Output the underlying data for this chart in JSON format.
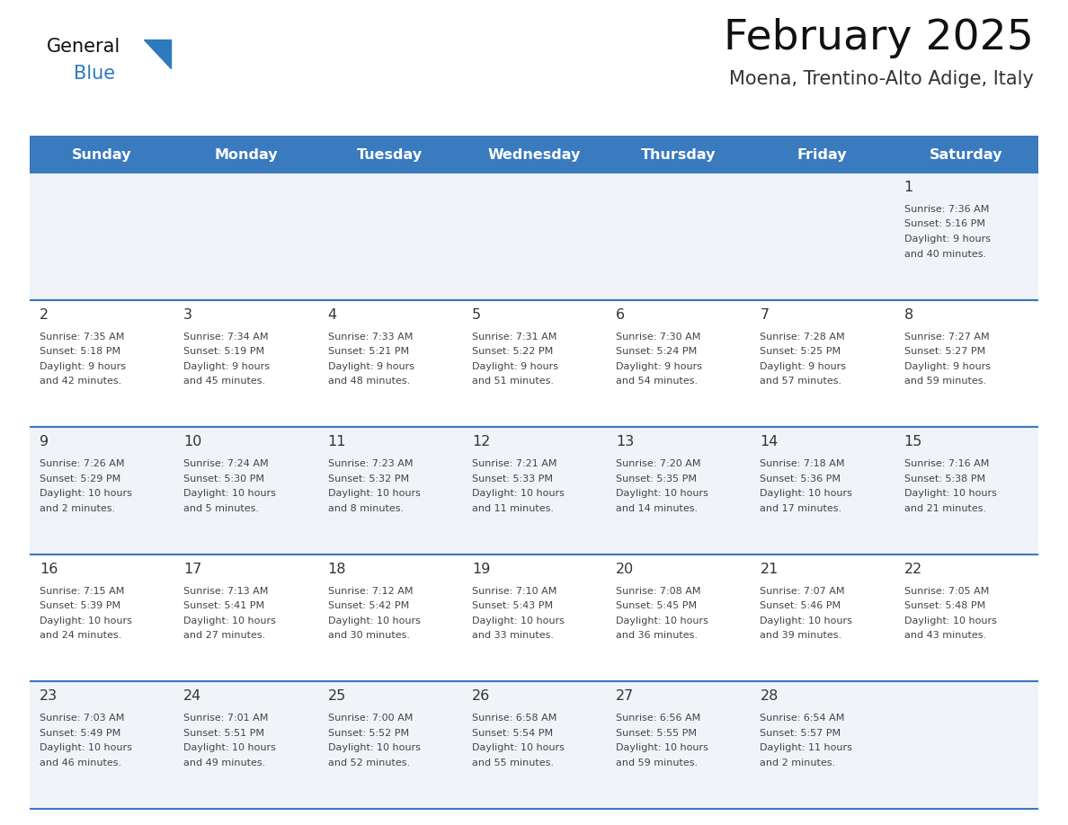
{
  "title": "February 2025",
  "subtitle": "Moena, Trentino-Alto Adige, Italy",
  "days_of_week": [
    "Sunday",
    "Monday",
    "Tuesday",
    "Wednesday",
    "Thursday",
    "Friday",
    "Saturday"
  ],
  "header_bg": "#3a7abf",
  "header_text": "#ffffff",
  "cell_bg_light": "#f0f4f8",
  "cell_bg_white": "#ffffff",
  "separator_color": "#3a7abf",
  "day_num_color": "#333333",
  "text_color": "#444444",
  "logo_general_color": "#111111",
  "logo_blue_color": "#2e7abf",
  "title_color": "#111111",
  "subtitle_color": "#333333",
  "calendar_data": [
    {
      "day": 1,
      "col": 6,
      "row": 0,
      "sunrise": "7:36 AM",
      "sunset": "5:16 PM",
      "daylight_h": "9 hours",
      "daylight_m": "40 minutes"
    },
    {
      "day": 2,
      "col": 0,
      "row": 1,
      "sunrise": "7:35 AM",
      "sunset": "5:18 PM",
      "daylight_h": "9 hours",
      "daylight_m": "42 minutes"
    },
    {
      "day": 3,
      "col": 1,
      "row": 1,
      "sunrise": "7:34 AM",
      "sunset": "5:19 PM",
      "daylight_h": "9 hours",
      "daylight_m": "45 minutes"
    },
    {
      "day": 4,
      "col": 2,
      "row": 1,
      "sunrise": "7:33 AM",
      "sunset": "5:21 PM",
      "daylight_h": "9 hours",
      "daylight_m": "48 minutes"
    },
    {
      "day": 5,
      "col": 3,
      "row": 1,
      "sunrise": "7:31 AM",
      "sunset": "5:22 PM",
      "daylight_h": "9 hours",
      "daylight_m": "51 minutes"
    },
    {
      "day": 6,
      "col": 4,
      "row": 1,
      "sunrise": "7:30 AM",
      "sunset": "5:24 PM",
      "daylight_h": "9 hours",
      "daylight_m": "54 minutes"
    },
    {
      "day": 7,
      "col": 5,
      "row": 1,
      "sunrise": "7:28 AM",
      "sunset": "5:25 PM",
      "daylight_h": "9 hours",
      "daylight_m": "57 minutes"
    },
    {
      "day": 8,
      "col": 6,
      "row": 1,
      "sunrise": "7:27 AM",
      "sunset": "5:27 PM",
      "daylight_h": "9 hours",
      "daylight_m": "59 minutes"
    },
    {
      "day": 9,
      "col": 0,
      "row": 2,
      "sunrise": "7:26 AM",
      "sunset": "5:29 PM",
      "daylight_h": "10 hours",
      "daylight_m": "2 minutes"
    },
    {
      "day": 10,
      "col": 1,
      "row": 2,
      "sunrise": "7:24 AM",
      "sunset": "5:30 PM",
      "daylight_h": "10 hours",
      "daylight_m": "5 minutes"
    },
    {
      "day": 11,
      "col": 2,
      "row": 2,
      "sunrise": "7:23 AM",
      "sunset": "5:32 PM",
      "daylight_h": "10 hours",
      "daylight_m": "8 minutes"
    },
    {
      "day": 12,
      "col": 3,
      "row": 2,
      "sunrise": "7:21 AM",
      "sunset": "5:33 PM",
      "daylight_h": "10 hours",
      "daylight_m": "11 minutes"
    },
    {
      "day": 13,
      "col": 4,
      "row": 2,
      "sunrise": "7:20 AM",
      "sunset": "5:35 PM",
      "daylight_h": "10 hours",
      "daylight_m": "14 minutes"
    },
    {
      "day": 14,
      "col": 5,
      "row": 2,
      "sunrise": "7:18 AM",
      "sunset": "5:36 PM",
      "daylight_h": "10 hours",
      "daylight_m": "17 minutes"
    },
    {
      "day": 15,
      "col": 6,
      "row": 2,
      "sunrise": "7:16 AM",
      "sunset": "5:38 PM",
      "daylight_h": "10 hours",
      "daylight_m": "21 minutes"
    },
    {
      "day": 16,
      "col": 0,
      "row": 3,
      "sunrise": "7:15 AM",
      "sunset": "5:39 PM",
      "daylight_h": "10 hours",
      "daylight_m": "24 minutes"
    },
    {
      "day": 17,
      "col": 1,
      "row": 3,
      "sunrise": "7:13 AM",
      "sunset": "5:41 PM",
      "daylight_h": "10 hours",
      "daylight_m": "27 minutes"
    },
    {
      "day": 18,
      "col": 2,
      "row": 3,
      "sunrise": "7:12 AM",
      "sunset": "5:42 PM",
      "daylight_h": "10 hours",
      "daylight_m": "30 minutes"
    },
    {
      "day": 19,
      "col": 3,
      "row": 3,
      "sunrise": "7:10 AM",
      "sunset": "5:43 PM",
      "daylight_h": "10 hours",
      "daylight_m": "33 minutes"
    },
    {
      "day": 20,
      "col": 4,
      "row": 3,
      "sunrise": "7:08 AM",
      "sunset": "5:45 PM",
      "daylight_h": "10 hours",
      "daylight_m": "36 minutes"
    },
    {
      "day": 21,
      "col": 5,
      "row": 3,
      "sunrise": "7:07 AM",
      "sunset": "5:46 PM",
      "daylight_h": "10 hours",
      "daylight_m": "39 minutes"
    },
    {
      "day": 22,
      "col": 6,
      "row": 3,
      "sunrise": "7:05 AM",
      "sunset": "5:48 PM",
      "daylight_h": "10 hours",
      "daylight_m": "43 minutes"
    },
    {
      "day": 23,
      "col": 0,
      "row": 4,
      "sunrise": "7:03 AM",
      "sunset": "5:49 PM",
      "daylight_h": "10 hours",
      "daylight_m": "46 minutes"
    },
    {
      "day": 24,
      "col": 1,
      "row": 4,
      "sunrise": "7:01 AM",
      "sunset": "5:51 PM",
      "daylight_h": "10 hours",
      "daylight_m": "49 minutes"
    },
    {
      "day": 25,
      "col": 2,
      "row": 4,
      "sunrise": "7:00 AM",
      "sunset": "5:52 PM",
      "daylight_h": "10 hours",
      "daylight_m": "52 minutes"
    },
    {
      "day": 26,
      "col": 3,
      "row": 4,
      "sunrise": "6:58 AM",
      "sunset": "5:54 PM",
      "daylight_h": "10 hours",
      "daylight_m": "55 minutes"
    },
    {
      "day": 27,
      "col": 4,
      "row": 4,
      "sunrise": "6:56 AM",
      "sunset": "5:55 PM",
      "daylight_h": "10 hours",
      "daylight_m": "59 minutes"
    },
    {
      "day": 28,
      "col": 5,
      "row": 4,
      "sunrise": "6:54 AM",
      "sunset": "5:57 PM",
      "daylight_h": "11 hours",
      "daylight_m": "2 minutes"
    }
  ]
}
